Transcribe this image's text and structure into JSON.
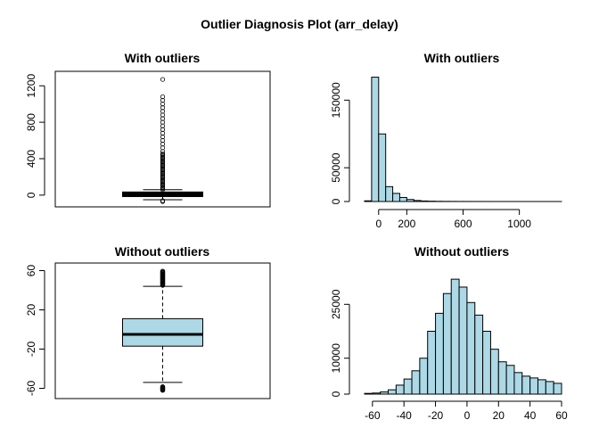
{
  "title": "Outlier Diagnosis Plot (arr_delay)",
  "colors": {
    "fill": "#add8e6",
    "stroke": "#000000"
  },
  "chart_data": [
    {
      "type": "boxplot",
      "title": "With outliers",
      "ylim": [
        -70,
        1300
      ],
      "yticks": [
        0,
        400,
        800,
        1200
      ],
      "box": {
        "whisker_low": -50,
        "q1": -15,
        "median": -5,
        "q3": 15,
        "whisker_high": 60
      },
      "outliers_dense_range": [
        60,
        460
      ],
      "outliers_sparse": [
        -60,
        -70,
        480,
        520,
        560,
        600,
        640,
        680,
        720,
        760,
        800,
        840,
        880,
        920,
        960,
        1000,
        1040,
        1080,
        1270
      ],
      "box_fill": "#000000"
    },
    {
      "type": "histogram",
      "title": "With outliers",
      "xlim": [
        -100,
        1300
      ],
      "xticks": [
        0,
        200,
        600,
        1000
      ],
      "ylim": [
        0,
        190000
      ],
      "yticks": [
        0,
        50000,
        150000
      ],
      "bin_width": 50,
      "bin_start": -100,
      "counts": [
        1000,
        184000,
        100000,
        22000,
        12000,
        6000,
        3000,
        1500,
        800,
        500,
        300,
        200,
        150,
        100,
        80,
        60,
        50,
        40,
        30,
        25,
        20,
        15,
        10,
        8,
        6,
        4,
        3,
        2
      ]
    },
    {
      "type": "boxplot",
      "title": "Without outliers",
      "ylim": [
        -65,
        65
      ],
      "yticks": [
        -60,
        -20,
        20,
        60
      ],
      "box": {
        "whisker_low": -54,
        "q1": -17,
        "median": -5,
        "q3": 11,
        "whisker_high": 44
      },
      "outliers_dense_high": [
        45,
        60
      ],
      "outliers_dense_low": [
        -62,
        -58
      ],
      "box_fill": "#add8e6"
    },
    {
      "type": "histogram",
      "title": "Without outliers",
      "xlim": [
        -65,
        60
      ],
      "xticks": [
        -60,
        -40,
        -20,
        0,
        20,
        40,
        60
      ],
      "ylim": [
        0,
        36000
      ],
      "yticks": [
        0,
        10000,
        25000
      ],
      "bin_width": 5,
      "bin_start": -65,
      "counts": [
        200,
        300,
        600,
        1200,
        2500,
        4200,
        6500,
        10000,
        17500,
        22500,
        28000,
        32000,
        29800,
        25500,
        22000,
        17500,
        12500,
        9000,
        8000,
        6000,
        5000,
        4500,
        4000,
        3500,
        3000
      ]
    }
  ]
}
